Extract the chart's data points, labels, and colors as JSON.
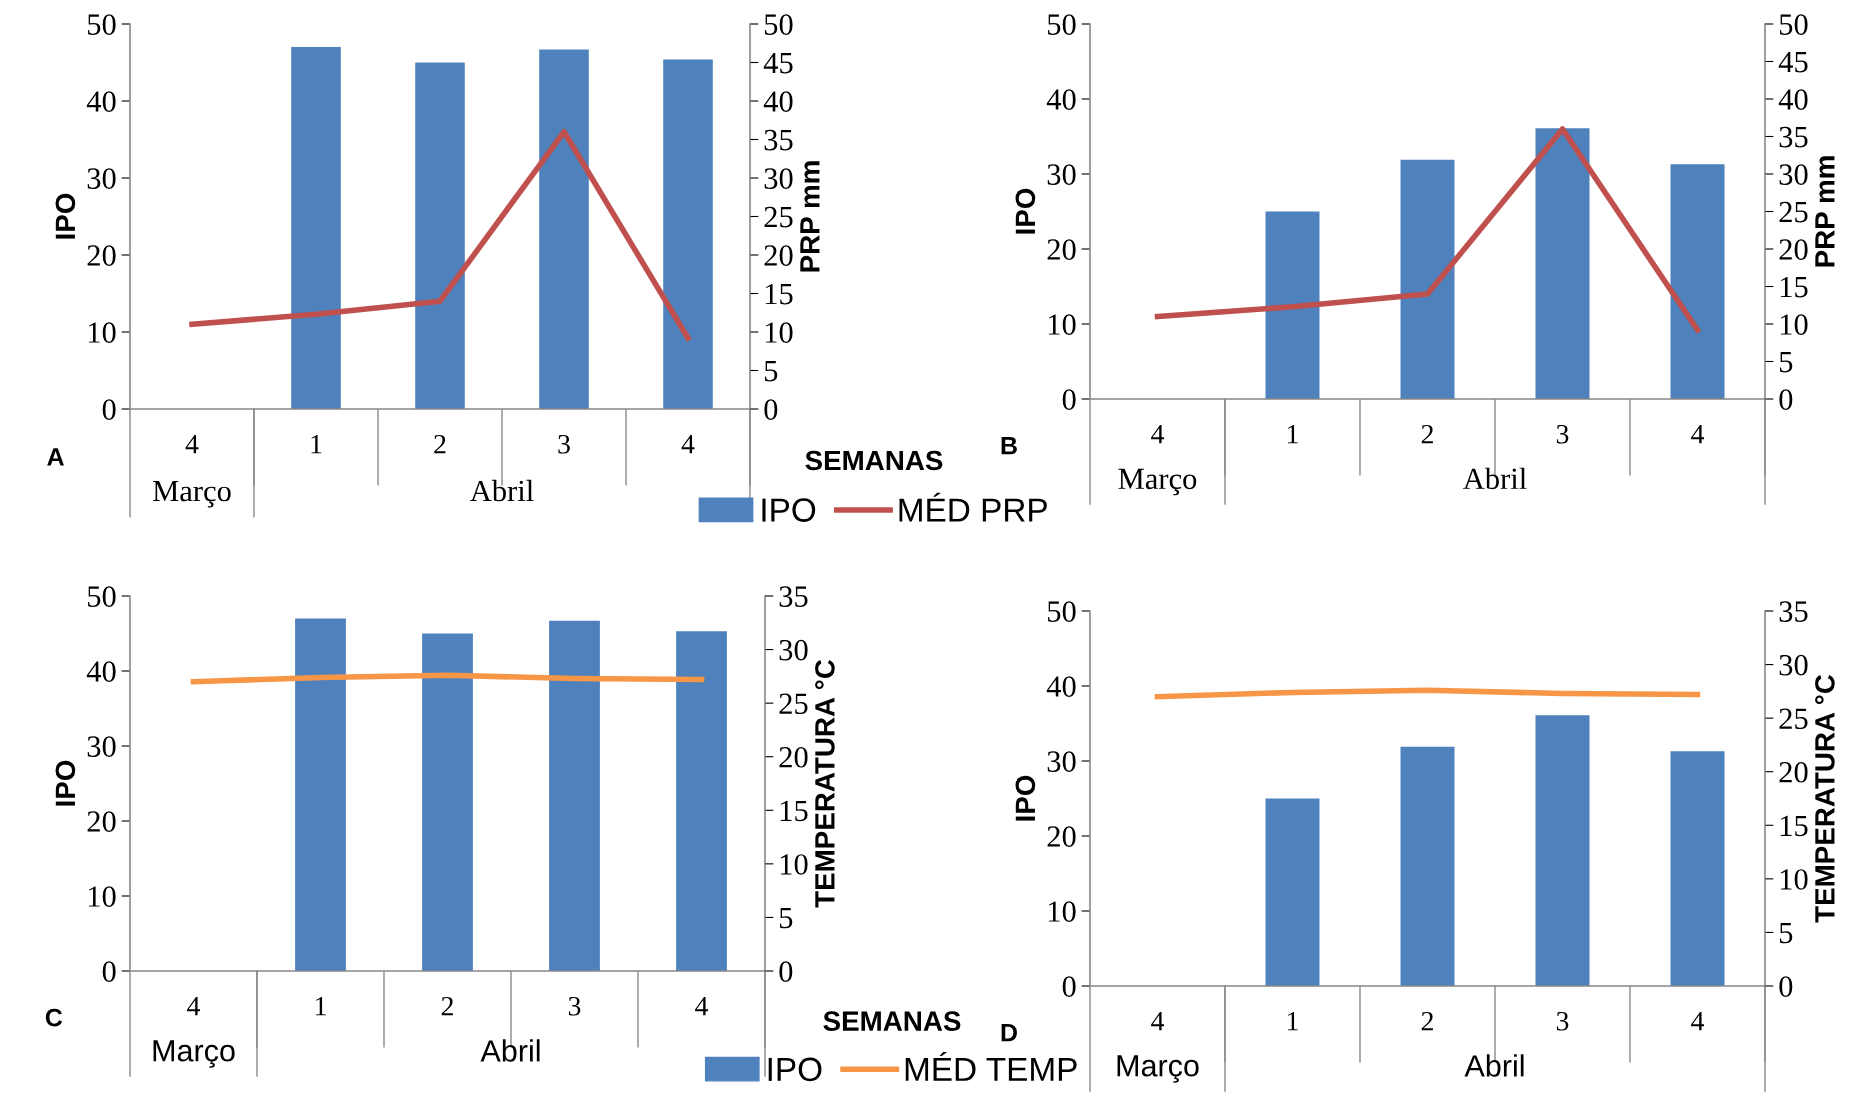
{
  "chart_data": [
    {
      "type": "bar",
      "categories": [
        "4",
        "1",
        "2",
        "3",
        "4"
      ],
      "xlabel": "SEMANAS",
      "ylabel": "IPO",
      "y2label": "PRP mm",
      "annotations": [
        "A",
        "Março",
        "Abril"
      ],
      "series": [
        {
          "name": "IPO",
          "color": "#4f81bd",
          "values": [
            null,
            47.0,
            45.0,
            46.7,
            45.4
          ]
        },
        {
          "name": "MÉD PRP",
          "type": "line",
          "axis": "y2",
          "color": "#c0504d",
          "values": [
            11.0,
            12.3,
            14.0,
            36.0,
            9.2
          ]
        }
      ],
      "ylim": [
        0,
        50
      ],
      "yticks": [
        0,
        10,
        20,
        30,
        40,
        50
      ],
      "y2lim": [
        0,
        50
      ],
      "y2ticks": [
        0,
        5,
        10,
        15,
        20,
        25,
        30,
        35,
        40,
        45,
        50
      ],
      "grid": false,
      "legend": "bottom right",
      "marker": "none"
    },
    {
      "type": "bar",
      "categories": [
        "4",
        "1",
        "2",
        "3",
        "4"
      ],
      "ylabel": "IPO",
      "y2label": "PRP mm",
      "annotations": [
        "B",
        "Março",
        "Abril"
      ],
      "series": [
        {
          "color": "#4f81bd",
          "values": [
            null,
            25.0,
            31.9,
            36.1,
            31.3
          ]
        },
        {
          "type": "line",
          "axis": "y2",
          "color": "#c0504d",
          "values": [
            11.0,
            12.3,
            14.0,
            36.0,
            9.2
          ]
        }
      ],
      "ylim": [
        0,
        50
      ],
      "yticks": [
        0,
        10,
        20,
        30,
        40,
        50
      ],
      "y2lim": [
        0,
        50
      ],
      "y2ticks": [
        0,
        5,
        10,
        15,
        20,
        25,
        30,
        35,
        40,
        45,
        50
      ],
      "grid": false,
      "marker": "none"
    },
    {
      "type": "bar",
      "categories": [
        "4",
        "1",
        "2",
        "3",
        "4"
      ],
      "xlabel": "SEMANAS",
      "ylabel": "IPO",
      "y2label": "TEMPERATURA °C",
      "annotations": [
        "C",
        "Março",
        "Abril"
      ],
      "series": [
        {
          "name": "IPO",
          "color": "#4f81bd",
          "values": [
            null,
            47.0,
            45.0,
            46.7,
            45.3
          ]
        },
        {
          "name": "MÉD TEMP",
          "type": "line",
          "axis": "y2",
          "color": "#f79646",
          "values": [
            27.0,
            27.4,
            27.6,
            27.3,
            27.2
          ]
        }
      ],
      "ylim": [
        0,
        50
      ],
      "yticks": [
        0,
        10,
        20,
        30,
        40,
        50
      ],
      "y2lim": [
        0,
        35
      ],
      "y2ticks": [
        0,
        5,
        10,
        15,
        20,
        25,
        30,
        35
      ],
      "grid": false,
      "legend": "bottom right",
      "marker": "none"
    },
    {
      "type": "bar",
      "categories": [
        "4",
        "1",
        "2",
        "3",
        "4"
      ],
      "ylabel": "IPO",
      "y2label": "TEMPERATURA °C",
      "annotations": [
        "D",
        "Março",
        "Abril"
      ],
      "series": [
        {
          "color": "#4f81bd",
          "values": [
            null,
            25.0,
            31.9,
            36.1,
            31.3
          ]
        },
        {
          "type": "line",
          "axis": "y2",
          "color": "#f79646",
          "values": [
            27.0,
            27.4,
            27.6,
            27.3,
            27.2
          ]
        }
      ],
      "ylim": [
        0,
        50
      ],
      "yticks": [
        0,
        10,
        20,
        30,
        40,
        50
      ],
      "y2lim": [
        0,
        35
      ],
      "y2ticks": [
        0,
        5,
        10,
        15,
        20,
        25,
        30,
        35
      ],
      "grid": false,
      "marker": "none"
    }
  ]
}
